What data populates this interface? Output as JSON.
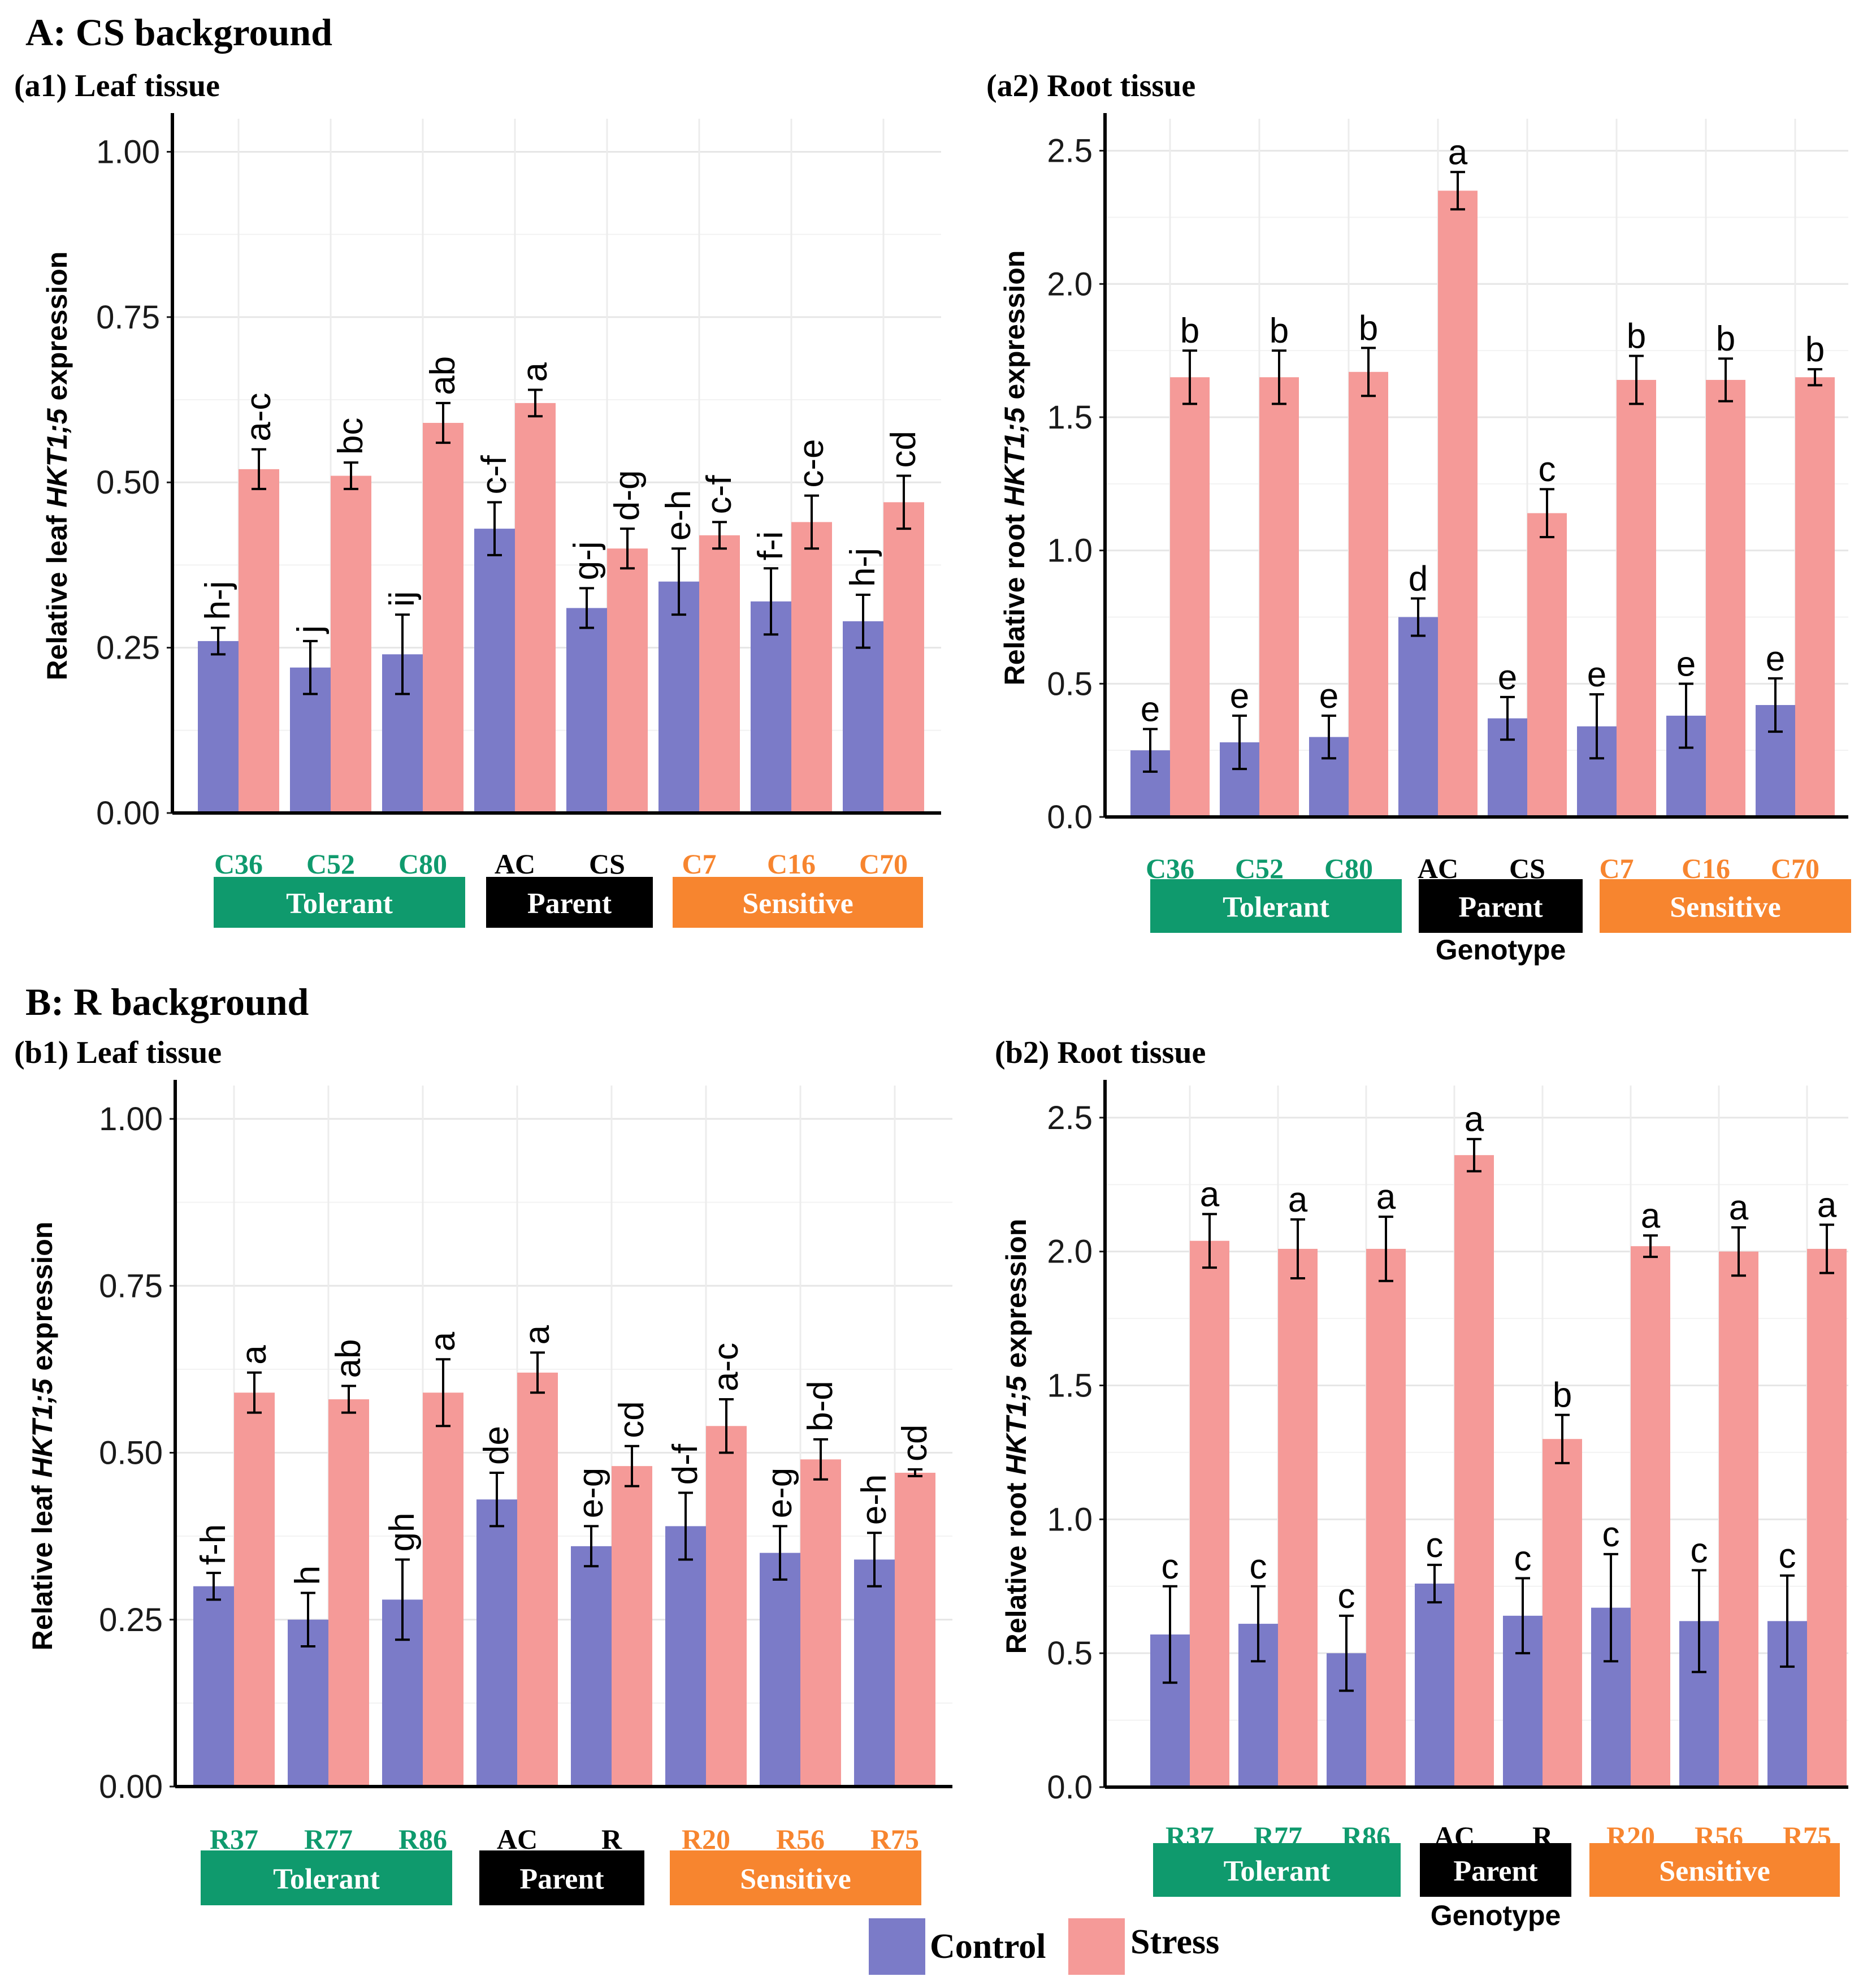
{
  "figure": {
    "section_a_title": "A: CS background",
    "section_b_title": "B: R background",
    "legend": {
      "control_label": "Control",
      "stress_label": "Stress"
    },
    "colors": {
      "control": "#7b7bc8",
      "stress": "#f59a98",
      "tolerant": "#0f9a6d",
      "parent": "#000000",
      "sensitive": "#f7852f",
      "tolerant_text": "#0f9a6d",
      "parent_text": "#000000",
      "sensitive_text": "#f7852f"
    },
    "group_labels": {
      "tolerant": "Tolerant",
      "parent": "Parent",
      "sensitive": "Sensitive"
    },
    "xlabel": "Genotype"
  },
  "chart_data": [
    {
      "id": "a1",
      "type": "bar",
      "panel_title": "(a1) Leaf tissue",
      "ylabel_prefix": "Relative leaf ",
      "ylabel_gene": "HKT1;5",
      "ylabel_suffix": " expression",
      "ylim": [
        0,
        1.05
      ],
      "yticks": [
        "0.00",
        "0.25",
        "0.50",
        "0.75",
        "1.00"
      ],
      "show_xlabel": false,
      "categories": [
        "C36",
        "C52",
        "C80",
        "AC",
        "CS",
        "C7",
        "C16",
        "C70"
      ],
      "groups": [
        "tolerant",
        "tolerant",
        "tolerant",
        "parent",
        "parent",
        "sensitive",
        "sensitive",
        "sensitive"
      ],
      "series": [
        {
          "name": "Control",
          "values": [
            0.26,
            0.22,
            0.24,
            0.43,
            0.31,
            0.35,
            0.32,
            0.29
          ],
          "errors": [
            0.02,
            0.04,
            0.06,
            0.04,
            0.03,
            0.05,
            0.05,
            0.04
          ],
          "letters": [
            "h-j",
            "j",
            "ij",
            "c-f",
            "g-j",
            "e-h",
            "f-i",
            "h-j"
          ]
        },
        {
          "name": "Stress",
          "values": [
            0.52,
            0.51,
            0.59,
            0.62,
            0.4,
            0.42,
            0.44,
            0.47
          ],
          "errors": [
            0.03,
            0.02,
            0.03,
            0.02,
            0.03,
            0.02,
            0.04,
            0.04
          ],
          "letters": [
            "a-c",
            "bc",
            "ab",
            "a",
            "d-g",
            "c-f",
            "c-e",
            "cd"
          ]
        }
      ]
    },
    {
      "id": "a2",
      "type": "bar",
      "panel_title": "(a2) Root tissue",
      "ylabel_prefix": "Relative root ",
      "ylabel_gene": "HKT1;5",
      "ylabel_suffix": " expression",
      "ylim": [
        0,
        2.62
      ],
      "yticks": [
        "0.0",
        "0.5",
        "1.0",
        "1.5",
        "2.0",
        "2.5"
      ],
      "show_xlabel": true,
      "categories": [
        "C36",
        "C52",
        "C80",
        "AC",
        "CS",
        "C7",
        "C16",
        "C70"
      ],
      "groups": [
        "tolerant",
        "tolerant",
        "tolerant",
        "parent",
        "parent",
        "sensitive",
        "sensitive",
        "sensitive"
      ],
      "series": [
        {
          "name": "Control",
          "values": [
            0.25,
            0.28,
            0.3,
            0.75,
            0.37,
            0.34,
            0.38,
            0.42
          ],
          "errors": [
            0.08,
            0.1,
            0.08,
            0.07,
            0.08,
            0.12,
            0.12,
            0.1
          ],
          "letters": [
            "e",
            "e",
            "e",
            "d",
            "e",
            "e",
            "e",
            "e"
          ]
        },
        {
          "name": "Stress",
          "values": [
            1.65,
            1.65,
            1.67,
            2.35,
            1.14,
            1.64,
            1.64,
            1.65
          ],
          "errors": [
            0.1,
            0.1,
            0.09,
            0.07,
            0.09,
            0.09,
            0.08,
            0.03
          ],
          "letters": [
            "b",
            "b",
            "b",
            "a",
            "c",
            "b",
            "b",
            "b"
          ]
        }
      ]
    },
    {
      "id": "b1",
      "type": "bar",
      "panel_title": "(b1) Leaf tissue",
      "ylabel_prefix": "Relative leaf ",
      "ylabel_gene": "HKT1;5",
      "ylabel_suffix": " expression",
      "ylim": [
        0,
        1.05
      ],
      "yticks": [
        "0.00",
        "0.25",
        "0.50",
        "0.75",
        "1.00"
      ],
      "show_xlabel": false,
      "categories": [
        "R37",
        "R77",
        "R86",
        "AC",
        "R",
        "R20",
        "R56",
        "R75"
      ],
      "groups": [
        "tolerant",
        "tolerant",
        "tolerant",
        "parent",
        "parent",
        "sensitive",
        "sensitive",
        "sensitive"
      ],
      "series": [
        {
          "name": "Control",
          "values": [
            0.3,
            0.25,
            0.28,
            0.43,
            0.36,
            0.39,
            0.35,
            0.34
          ],
          "errors": [
            0.02,
            0.04,
            0.06,
            0.04,
            0.03,
            0.05,
            0.04,
            0.04
          ],
          "letters": [
            "f-h",
            "h",
            "gh",
            "de",
            "e-g",
            "d-f",
            "e-g",
            "e-h"
          ]
        },
        {
          "name": "Stress",
          "values": [
            0.59,
            0.58,
            0.59,
            0.62,
            0.48,
            0.54,
            0.49,
            0.47
          ],
          "errors": [
            0.03,
            0.02,
            0.05,
            0.03,
            0.03,
            0.04,
            0.03,
            0.005
          ],
          "letters": [
            "a",
            "ab",
            "a",
            "a",
            "cd",
            "a-c",
            "b-d",
            "cd"
          ]
        }
      ]
    },
    {
      "id": "b2",
      "type": "bar",
      "panel_title": "(b2) Root tissue",
      "ylabel_prefix": "Relative root ",
      "ylabel_gene": "HKT1;5",
      "ylabel_suffix": " expression",
      "ylim": [
        0,
        2.62
      ],
      "yticks": [
        "0.0",
        "0.5",
        "1.0",
        "1.5",
        "2.0",
        "2.5"
      ],
      "show_xlabel": true,
      "categories": [
        "R37",
        "R77",
        "R86",
        "AC",
        "R",
        "R20",
        "R56",
        "R75"
      ],
      "groups": [
        "tolerant",
        "tolerant",
        "tolerant",
        "parent",
        "parent",
        "sensitive",
        "sensitive",
        "sensitive"
      ],
      "series": [
        {
          "name": "Control",
          "values": [
            0.57,
            0.61,
            0.5,
            0.76,
            0.64,
            0.67,
            0.62,
            0.62
          ],
          "errors": [
            0.18,
            0.14,
            0.14,
            0.07,
            0.14,
            0.2,
            0.19,
            0.17
          ],
          "letters": [
            "c",
            "c",
            "c",
            "c",
            "c",
            "c",
            "c",
            "c"
          ]
        },
        {
          "name": "Stress",
          "values": [
            2.04,
            2.01,
            2.01,
            2.36,
            1.3,
            2.02,
            2.0,
            2.01
          ],
          "errors": [
            0.1,
            0.11,
            0.12,
            0.06,
            0.09,
            0.04,
            0.09,
            0.09
          ],
          "letters": [
            "a",
            "a",
            "a",
            "a",
            "b",
            "a",
            "a",
            "a"
          ]
        }
      ]
    }
  ]
}
